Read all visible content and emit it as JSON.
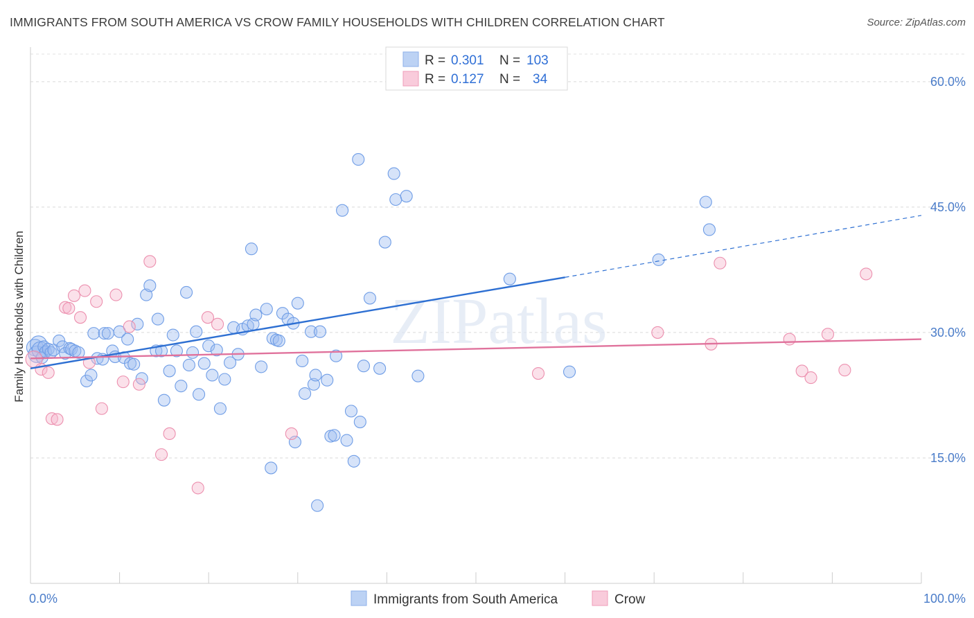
{
  "title": "IMMIGRANTS FROM SOUTH AMERICA VS CROW FAMILY HOUSEHOLDS WITH CHILDREN CORRELATION CHART",
  "source": "Source: ZipAtlas.com",
  "watermark": "ZIPatlas",
  "chart_data": {
    "type": "scatter",
    "title": "IMMIGRANTS FROM SOUTH AMERICA VS CROW FAMILY HOUSEHOLDS WITH CHILDREN CORRELATION CHART",
    "xlabel": "",
    "ylabel": "Family Households with Children",
    "xlim": [
      0,
      100
    ],
    "ylim": [
      0,
      63.3
    ],
    "y_ticks": [
      15,
      30,
      45,
      60
    ],
    "y_tick_labels": [
      "15.0%",
      "30.0%",
      "45.0%",
      "60.0%"
    ],
    "x_tick_labels": [
      "0.0%",
      "100.0%"
    ],
    "x_minor_ticks": [
      0,
      10,
      20,
      30,
      40,
      50,
      60,
      70,
      80,
      90,
      100
    ],
    "grid": "horizontal dashed",
    "legend_position": "top-center",
    "series": [
      {
        "name": "Immigrants from South America",
        "color": "#9dbcf0",
        "edge": "#6f9de6",
        "line_color": "#2d6fd2",
        "R": "0.301",
        "N": "103",
        "trend": {
          "x0": 0,
          "y0": 25.7,
          "x1": 60,
          "y1": 36.6,
          "dashed_to_x": 100,
          "dashed_to_y": 44.0
        },
        "points": [
          [
            0.5,
            28.2
          ],
          [
            0.7,
            27.4
          ],
          [
            0.9,
            28.6
          ],
          [
            1.1,
            27.9
          ],
          [
            1.3,
            27.0
          ],
          [
            1.5,
            28.3
          ],
          [
            1.7,
            27.7
          ],
          [
            2.0,
            28.0
          ],
          [
            2.3,
            27.6
          ],
          [
            2.6,
            27.9
          ],
          [
            3.2,
            29.0
          ],
          [
            3.6,
            28.3
          ],
          [
            3.9,
            27.5
          ],
          [
            4.4,
            28.1
          ],
          [
            4.6,
            28.0
          ],
          [
            5.0,
            27.8
          ],
          [
            5.4,
            27.6
          ],
          [
            6.3,
            24.2
          ],
          [
            6.8,
            24.9
          ],
          [
            7.1,
            29.9
          ],
          [
            7.5,
            26.9
          ],
          [
            8.1,
            26.8
          ],
          [
            8.3,
            29.9
          ],
          [
            8.7,
            29.9
          ],
          [
            9.2,
            27.8
          ],
          [
            9.5,
            27.1
          ],
          [
            10.0,
            30.1
          ],
          [
            10.5,
            27.0
          ],
          [
            10.9,
            29.2
          ],
          [
            11.2,
            26.3
          ],
          [
            11.6,
            26.2
          ],
          [
            12.0,
            31.0
          ],
          [
            12.5,
            24.5
          ],
          [
            13.0,
            34.5
          ],
          [
            13.4,
            35.6
          ],
          [
            14.1,
            27.8
          ],
          [
            14.3,
            31.6
          ],
          [
            14.7,
            27.8
          ],
          [
            15.0,
            21.9
          ],
          [
            15.6,
            25.4
          ],
          [
            16.0,
            29.7
          ],
          [
            16.4,
            27.8
          ],
          [
            16.9,
            23.6
          ],
          [
            17.5,
            34.8
          ],
          [
            17.8,
            26.1
          ],
          [
            18.2,
            27.6
          ],
          [
            18.6,
            30.1
          ],
          [
            18.9,
            22.6
          ],
          [
            19.5,
            26.3
          ],
          [
            20.0,
            28.4
          ],
          [
            20.4,
            24.9
          ],
          [
            20.9,
            27.9
          ],
          [
            21.3,
            20.9
          ],
          [
            21.8,
            24.4
          ],
          [
            22.4,
            26.4
          ],
          [
            22.8,
            30.6
          ],
          [
            23.3,
            27.4
          ],
          [
            23.8,
            30.4
          ],
          [
            24.4,
            30.8
          ],
          [
            25.0,
            31.0
          ],
          [
            25.3,
            32.1
          ],
          [
            25.9,
            25.9
          ],
          [
            26.5,
            32.8
          ],
          [
            27.2,
            29.3
          ],
          [
            27.6,
            29.1
          ],
          [
            28.3,
            32.3
          ],
          [
            28.9,
            31.6
          ],
          [
            29.5,
            31.1
          ],
          [
            30.0,
            33.5
          ],
          [
            29.7,
            16.9
          ],
          [
            30.5,
            26.6
          ],
          [
            30.8,
            22.7
          ],
          [
            31.5,
            30.1
          ],
          [
            31.8,
            23.8
          ],
          [
            32.0,
            24.9
          ],
          [
            32.5,
            30.1
          ],
          [
            33.3,
            24.3
          ],
          [
            33.7,
            17.6
          ],
          [
            34.1,
            17.7
          ],
          [
            34.3,
            27.2
          ],
          [
            35.0,
            44.6
          ],
          [
            35.5,
            17.1
          ],
          [
            36.0,
            20.6
          ],
          [
            36.3,
            14.6
          ],
          [
            36.8,
            50.7
          ],
          [
            37.0,
            19.3
          ],
          [
            37.4,
            26.0
          ],
          [
            38.1,
            34.1
          ],
          [
            39.2,
            25.7
          ],
          [
            39.8,
            40.8
          ],
          [
            40.8,
            49.0
          ],
          [
            41.0,
            45.9
          ],
          [
            42.2,
            46.3
          ],
          [
            24.8,
            40.0
          ],
          [
            27.9,
            29.0
          ],
          [
            27.0,
            13.8
          ],
          [
            32.2,
            9.3
          ],
          [
            43.5,
            24.8
          ],
          [
            53.8,
            36.4
          ],
          [
            60.5,
            25.3
          ],
          [
            70.5,
            38.7
          ],
          [
            75.8,
            45.6
          ],
          [
            76.2,
            42.3
          ]
        ]
      },
      {
        "name": "Crow",
        "color": "#f6b7cc",
        "edge": "#ec8fae",
        "line_color": "#e0729c",
        "R": "0.127",
        "N": "34",
        "trend": {
          "x0": 0,
          "y0": 26.9,
          "x1": 100,
          "y1": 29.2
        },
        "points": [
          [
            0.4,
            26.8
          ],
          [
            1.2,
            25.6
          ],
          [
            2.0,
            25.2
          ],
          [
            2.4,
            19.7
          ],
          [
            3.0,
            19.6
          ],
          [
            3.9,
            33.0
          ],
          [
            4.3,
            32.9
          ],
          [
            4.9,
            34.4
          ],
          [
            5.6,
            31.8
          ],
          [
            6.1,
            35.0
          ],
          [
            6.6,
            26.4
          ],
          [
            7.4,
            33.7
          ],
          [
            8.0,
            20.9
          ],
          [
            9.6,
            34.5
          ],
          [
            10.4,
            24.1
          ],
          [
            11.1,
            30.7
          ],
          [
            12.2,
            23.8
          ],
          [
            13.4,
            38.5
          ],
          [
            14.7,
            15.4
          ],
          [
            15.6,
            17.9
          ],
          [
            18.8,
            11.4
          ],
          [
            19.9,
            31.8
          ],
          [
            21.0,
            31.0
          ],
          [
            29.3,
            17.9
          ],
          [
            57.0,
            25.1
          ],
          [
            70.4,
            30.0
          ],
          [
            76.4,
            28.6
          ],
          [
            77.4,
            38.3
          ],
          [
            85.2,
            29.2
          ],
          [
            86.6,
            25.4
          ],
          [
            87.6,
            24.6
          ],
          [
            89.5,
            29.8
          ],
          [
            91.4,
            25.5
          ],
          [
            93.8,
            37.0
          ]
        ]
      }
    ]
  },
  "legend": {
    "r_label": "R =",
    "n_label": "N =",
    "rows": [
      {
        "r": "0.301",
        "n": "103"
      },
      {
        "r": "0.127",
        "n": "34"
      }
    ]
  },
  "bottom_legend": [
    "Immigrants from South America",
    "Crow"
  ]
}
